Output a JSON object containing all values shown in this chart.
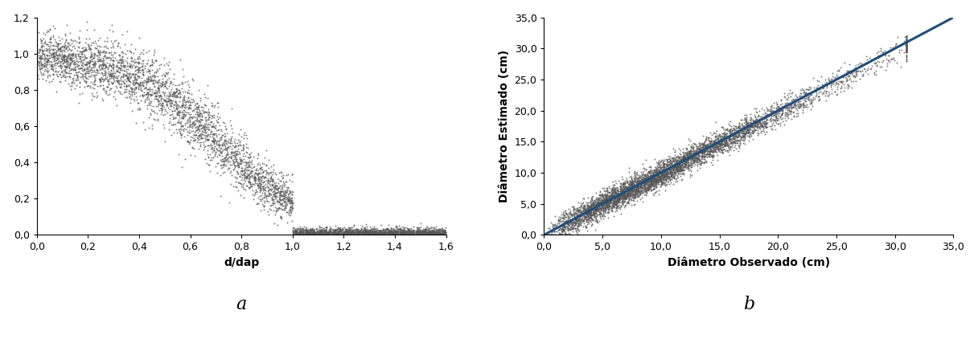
{
  "plot_a": {
    "xlabel": "d/dap",
    "ylabel": "",
    "xlim": [
      0.0,
      1.6
    ],
    "ylim": [
      0.0,
      1.2
    ],
    "xticks": [
      0.0,
      0.2,
      0.4,
      0.6,
      0.8,
      1.0,
      1.2,
      1.4,
      1.6
    ],
    "yticks": [
      0.0,
      0.2,
      0.4,
      0.6,
      0.8,
      1.0,
      1.2
    ],
    "scatter_color": "#555555",
    "label": "a"
  },
  "plot_b": {
    "xlabel": "Diâmetro Observado (cm)",
    "ylabel": "Diâmetro Estimado (cm)",
    "xlim": [
      0.0,
      35.0
    ],
    "ylim": [
      0.0,
      35.0
    ],
    "xticks": [
      0.0,
      5.0,
      10.0,
      15.0,
      20.0,
      25.0,
      30.0,
      35.0
    ],
    "yticks": [
      0.0,
      5.0,
      10.0,
      15.0,
      20.0,
      25.0,
      30.0,
      35.0
    ],
    "scatter_color": "#555555",
    "line_color": "#1f4e79",
    "line_x": [
      0.0,
      35.0
    ],
    "line_y": [
      0.0,
      35.0
    ],
    "label": "b"
  },
  "background_color": "#ffffff",
  "scatter_size": 2,
  "scatter_alpha": 0.75,
  "tick_label_fontsize": 9,
  "axis_label_fontsize": 10,
  "sublabel_fontsize": 16,
  "n_points_a": 5000,
  "n_points_b": 5000,
  "seed": 42
}
